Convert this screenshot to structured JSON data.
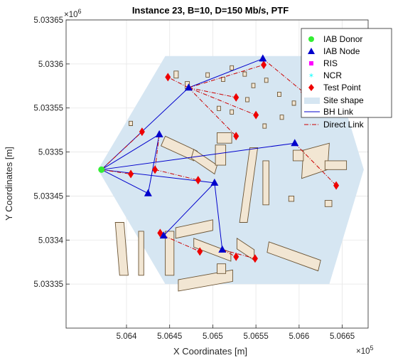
{
  "chart_data": {
    "type": "scatter",
    "title": "Instance 23, B=10, D=150 Mb/s, PTF",
    "xlabel": "X Coordinates [m]",
    "ylabel": "Y Coordinates [m]",
    "x_exponent_label": "×10",
    "x_exponent_power": "5",
    "y_exponent_label": "×10",
    "y_exponent_power": "6",
    "xlim": [
      5.0633,
      5.0668
    ],
    "ylim": [
      5.0333,
      5.03365
    ],
    "x_ticks": [
      5.064,
      5.0645,
      5.065,
      5.0655,
      5.066,
      5.0665
    ],
    "x_tick_labels": [
      "5.064",
      "5.0645",
      "5.065",
      "5.0655",
      "5.066",
      "5.0665"
    ],
    "y_ticks": [
      5.03335,
      5.0334,
      5.03345,
      5.0335,
      5.03355,
      5.0336,
      5.03365
    ],
    "y_tick_labels": [
      "5.03335",
      "5.0334",
      "5.03345",
      "5.0335",
      "5.03355",
      "5.0336",
      "5.03365"
    ],
    "grid": true,
    "legend_position": "top-right",
    "legend": [
      {
        "label": "IAB Donor",
        "marker": "circle",
        "color": "#33ee33"
      },
      {
        "label": "IAB Node",
        "marker": "triangle",
        "color": "#0000cc"
      },
      {
        "label": "RIS",
        "marker": "square",
        "color": "#ff00ff"
      },
      {
        "label": "NCR",
        "marker": "star",
        "color": "#00ffff"
      },
      {
        "label": "Test Point",
        "marker": "diamond",
        "color": "#ee0000"
      },
      {
        "label": "Site shape",
        "marker": "patch",
        "color": "#d6e6f2"
      },
      {
        "label": "BH Link",
        "marker": "line",
        "color": "#0000cc"
      },
      {
        "label": "Direct Link",
        "marker": "dashdot",
        "color": "#cc0000"
      }
    ],
    "site_shape": [
      [
        5.06367,
        5.03348
      ],
      [
        5.06445,
        5.033609
      ],
      [
        5.06635,
        5.033609
      ],
      [
        5.06675,
        5.03348
      ],
      [
        5.06635,
        5.03335
      ],
      [
        5.06445,
        5.03335
      ]
    ],
    "iab_donor": [
      {
        "x": 5.06371,
        "y": 5.03348
      }
    ],
    "iab_nodes": [
      {
        "x": 5.06438,
        "y": 5.03352
      },
      {
        "x": 5.06472,
        "y": 5.033573
      },
      {
        "x": 5.06558,
        "y": 5.033606
      },
      {
        "x": 5.06595,
        "y": 5.03351
      },
      {
        "x": 5.06425,
        "y": 5.033453
      },
      {
        "x": 5.06502,
        "y": 5.033465
      },
      {
        "x": 5.06443,
        "y": 5.033405
      },
      {
        "x": 5.06511,
        "y": 5.033389
      }
    ],
    "test_points": [
      {
        "x": 5.06418,
        "y": 5.033523
      },
      {
        "x": 5.06448,
        "y": 5.033585
      },
      {
        "x": 5.06559,
        "y": 5.033599
      },
      {
        "x": 5.06527,
        "y": 5.033562
      },
      {
        "x": 5.06605,
        "y": 5.033568
      },
      {
        "x": 5.0655,
        "y": 5.033542
      },
      {
        "x": 5.06527,
        "y": 5.033518
      },
      {
        "x": 5.06405,
        "y": 5.033475
      },
      {
        "x": 5.06433,
        "y": 5.03348
      },
      {
        "x": 5.06483,
        "y": 5.033468
      },
      {
        "x": 5.06643,
        "y": 5.033462
      },
      {
        "x": 5.06439,
        "y": 5.033408
      },
      {
        "x": 5.06485,
        "y": 5.033387
      },
      {
        "x": 5.06527,
        "y": 5.033381
      },
      {
        "x": 5.06549,
        "y": 5.033379
      }
    ],
    "bh_links": [
      [
        [
          5.06371,
          5.03348
        ],
        [
          5.06438,
          5.03352
        ]
      ],
      [
        [
          5.06371,
          5.03348
        ],
        [
          5.06472,
          5.033573
        ]
      ],
      [
        [
          5.06371,
          5.03348
        ],
        [
          5.06595,
          5.03351
        ]
      ],
      [
        [
          5.06371,
          5.03348
        ],
        [
          5.06425,
          5.033453
        ]
      ],
      [
        [
          5.06371,
          5.03348
        ],
        [
          5.06502,
          5.033465
        ]
      ],
      [
        [
          5.06472,
          5.033573
        ],
        [
          5.06558,
          5.033606
        ]
      ],
      [
        [
          5.06438,
          5.03352
        ],
        [
          5.06425,
          5.033453
        ]
      ],
      [
        [
          5.06502,
          5.033465
        ],
        [
          5.06443,
          5.033405
        ]
      ],
      [
        [
          5.06502,
          5.033465
        ],
        [
          5.06511,
          5.033389
        ]
      ]
    ],
    "direct_links": [
      [
        [
          5.06371,
          5.03348
        ],
        [
          5.06418,
          5.033523
        ]
      ],
      [
        [
          5.06371,
          5.03348
        ],
        [
          5.06405,
          5.033475
        ]
      ],
      [
        [
          5.06472,
          5.033573
        ],
        [
          5.06448,
          5.033585
        ]
      ],
      [
        [
          5.06472,
          5.033573
        ],
        [
          5.06559,
          5.033599
        ]
      ],
      [
        [
          5.06472,
          5.033573
        ],
        [
          5.06527,
          5.033562
        ]
      ],
      [
        [
          5.06472,
          5.033573
        ],
        [
          5.06527,
          5.033518
        ]
      ],
      [
        [
          5.06472,
          5.033573
        ],
        [
          5.0655,
          5.033542
        ]
      ],
      [
        [
          5.06558,
          5.033606
        ],
        [
          5.06605,
          5.033568
        ]
      ],
      [
        [
          5.06438,
          5.03352
        ],
        [
          5.06433,
          5.03348
        ]
      ],
      [
        [
          5.06433,
          5.03348
        ],
        [
          5.06483,
          5.033468
        ]
      ],
      [
        [
          5.06595,
          5.03351
        ],
        [
          5.06643,
          5.033462
        ]
      ],
      [
        [
          5.06443,
          5.033405
        ],
        [
          5.06439,
          5.033408
        ]
      ],
      [
        [
          5.06443,
          5.033405
        ],
        [
          5.06485,
          5.033387
        ]
      ],
      [
        [
          5.06511,
          5.033389
        ],
        [
          5.06527,
          5.033381
        ]
      ],
      [
        [
          5.06511,
          5.033389
        ],
        [
          5.06549,
          5.033379
        ]
      ]
    ],
    "buildings": [
      [
        [
          5.06387,
          5.03342
        ],
        [
          5.06397,
          5.03342
        ],
        [
          5.06402,
          5.03336
        ],
        [
          5.06392,
          5.03336
        ]
      ],
      [
        [
          5.06414,
          5.03341
        ],
        [
          5.0642,
          5.03341
        ],
        [
          5.0642,
          5.03336
        ],
        [
          5.06414,
          5.03336
        ]
      ],
      [
        [
          5.06445,
          5.03341
        ],
        [
          5.06455,
          5.03341
        ],
        [
          5.06455,
          5.03336
        ],
        [
          5.06445,
          5.03336
        ]
      ],
      [
        [
          5.06457,
          5.033414
        ],
        [
          5.065,
          5.033423
        ],
        [
          5.065,
          5.033411
        ],
        [
          5.06457,
          5.033402
        ]
      ],
      [
        [
          5.06478,
          5.033402
        ],
        [
          5.06521,
          5.033386
        ],
        [
          5.06521,
          5.033376
        ],
        [
          5.06478,
          5.033392
        ]
      ],
      [
        [
          5.0646,
          5.033355
        ],
        [
          5.06523,
          5.033366
        ],
        [
          5.06523,
          5.033353
        ],
        [
          5.0646,
          5.033342
        ]
      ],
      [
        [
          5.06528,
          5.033402
        ],
        [
          5.06548,
          5.033389
        ],
        [
          5.06548,
          5.033377
        ],
        [
          5.06528,
          5.03339
        ]
      ],
      [
        [
          5.06565,
          5.033398
        ],
        [
          5.06625,
          5.033377
        ],
        [
          5.06622,
          5.033365
        ],
        [
          5.06563,
          5.033386
        ]
      ],
      [
        [
          5.06505,
          5.033373
        ],
        [
          5.06515,
          5.033373
        ],
        [
          5.06515,
          5.033362
        ],
        [
          5.06505,
          5.033362
        ]
      ],
      [
        [
          5.06445,
          5.033518
        ],
        [
          5.06482,
          5.033501
        ],
        [
          5.06478,
          5.03349
        ],
        [
          5.0644,
          5.033507
        ]
      ],
      [
        [
          5.06478,
          5.033503
        ],
        [
          5.06505,
          5.033485
        ],
        [
          5.06502,
          5.033475
        ],
        [
          5.06475,
          5.033493
        ]
      ],
      [
        [
          5.06505,
          5.033522
        ],
        [
          5.06522,
          5.033522
        ],
        [
          5.06522,
          5.03351
        ],
        [
          5.06505,
          5.03351
        ]
      ],
      [
        [
          5.06503,
          5.033508
        ],
        [
          5.06515,
          5.033508
        ],
        [
          5.06515,
          5.033485
        ],
        [
          5.06503,
          5.033485
        ]
      ],
      [
        [
          5.06543,
          5.033505
        ],
        [
          5.06552,
          5.033505
        ],
        [
          5.0654,
          5.03342
        ],
        [
          5.06531,
          5.03342
        ]
      ],
      [
        [
          5.06558,
          5.03349
        ],
        [
          5.06565,
          5.03349
        ],
        [
          5.06565,
          5.03344
        ],
        [
          5.06558,
          5.03344
        ]
      ],
      [
        [
          5.06605,
          5.033502
        ],
        [
          5.06635,
          5.03351
        ],
        [
          5.06633,
          5.03348
        ],
        [
          5.06603,
          5.03347
        ]
      ],
      [
        [
          5.0663,
          5.03349
        ],
        [
          5.06655,
          5.03349
        ],
        [
          5.06655,
          5.03348
        ],
        [
          5.0663,
          5.03348
        ]
      ],
      [
        [
          5.06593,
          5.033502
        ],
        [
          5.06605,
          5.033502
        ],
        [
          5.06605,
          5.03349
        ],
        [
          5.06593,
          5.03349
        ]
      ],
      [
        [
          5.06455,
          5.033592
        ],
        [
          5.0646,
          5.033592
        ],
        [
          5.0646,
          5.033584
        ],
        [
          5.06455,
          5.033584
        ]
      ],
      [
        [
          5.06468,
          5.03358
        ],
        [
          5.06473,
          5.03358
        ],
        [
          5.06473,
          5.033572
        ],
        [
          5.06468,
          5.033572
        ]
      ],
      [
        [
          5.06492,
          5.03359
        ],
        [
          5.06496,
          5.03359
        ],
        [
          5.06496,
          5.033585
        ],
        [
          5.06492,
          5.033585
        ]
      ],
      [
        [
          5.0651,
          5.033585
        ],
        [
          5.06514,
          5.033585
        ],
        [
          5.06514,
          5.03358
        ],
        [
          5.0651,
          5.03358
        ]
      ],
      [
        [
          5.0652,
          5.033598
        ],
        [
          5.06524,
          5.033598
        ],
        [
          5.06524,
          5.033593
        ],
        [
          5.0652,
          5.033593
        ]
      ],
      [
        [
          5.06535,
          5.033591
        ],
        [
          5.06539,
          5.033591
        ],
        [
          5.06539,
          5.033586
        ],
        [
          5.06535,
          5.033586
        ]
      ],
      [
        [
          5.06545,
          5.033578
        ],
        [
          5.06549,
          5.033578
        ],
        [
          5.06549,
          5.033573
        ],
        [
          5.06545,
          5.033573
        ]
      ],
      [
        [
          5.0656,
          5.033584
        ],
        [
          5.06564,
          5.033584
        ],
        [
          5.06564,
          5.033579
        ],
        [
          5.0656,
          5.033579
        ]
      ],
      [
        [
          5.06575,
          5.033568
        ],
        [
          5.06579,
          5.033568
        ],
        [
          5.06579,
          5.033563
        ],
        [
          5.06575,
          5.033563
        ]
      ],
      [
        [
          5.06505,
          5.033552
        ],
        [
          5.06509,
          5.033552
        ],
        [
          5.06509,
          5.033547
        ],
        [
          5.06505,
          5.033547
        ]
      ],
      [
        [
          5.0652,
          5.033548
        ],
        [
          5.06524,
          5.033548
        ],
        [
          5.06524,
          5.033543
        ],
        [
          5.0652,
          5.033543
        ]
      ],
      [
        [
          5.06538,
          5.033562
        ],
        [
          5.06542,
          5.033562
        ],
        [
          5.06542,
          5.033557
        ],
        [
          5.06538,
          5.033557
        ]
      ],
      [
        [
          5.06558,
          5.033532
        ],
        [
          5.06562,
          5.033532
        ],
        [
          5.06562,
          5.033527
        ],
        [
          5.06558,
          5.033527
        ]
      ],
      [
        [
          5.06578,
          5.033542
        ],
        [
          5.06582,
          5.033542
        ],
        [
          5.06582,
          5.033537
        ],
        [
          5.06578,
          5.033537
        ]
      ],
      [
        [
          5.06592,
          5.033558
        ],
        [
          5.06596,
          5.033558
        ],
        [
          5.06596,
          5.033553
        ],
        [
          5.06592,
          5.033553
        ]
      ],
      [
        [
          5.0661,
          5.033592
        ],
        [
          5.06614,
          5.033592
        ],
        [
          5.06614,
          5.033587
        ],
        [
          5.0661,
          5.033587
        ]
      ],
      [
        [
          5.06403,
          5.033535
        ],
        [
          5.06407,
          5.033535
        ],
        [
          5.06407,
          5.03353
        ],
        [
          5.06403,
          5.03353
        ]
      ],
      [
        [
          5.06588,
          5.03345
        ],
        [
          5.06594,
          5.03345
        ],
        [
          5.06594,
          5.033444
        ],
        [
          5.06588,
          5.033444
        ]
      ],
      [
        [
          5.0663,
          5.033445
        ],
        [
          5.06638,
          5.033445
        ],
        [
          5.06638,
          5.033438
        ],
        [
          5.0663,
          5.033438
        ]
      ]
    ]
  }
}
